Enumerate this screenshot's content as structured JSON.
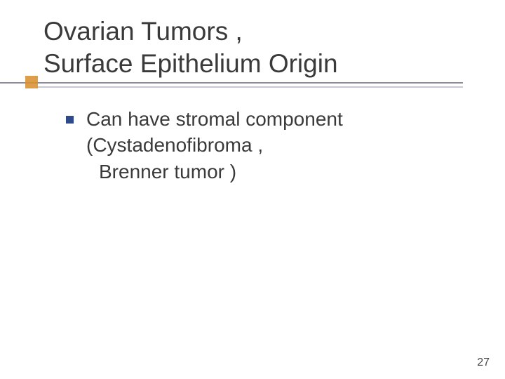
{
  "slide": {
    "title_line1": "Ovarian Tumors ,",
    "title_line2": "Surface Epithelium Origin",
    "title_color": "#3a3a3a",
    "title_fontsize": 37,
    "underline_color": "#8a8a9a",
    "shadow_line_color": "#c8c8d0",
    "accent_square_color": "#d98f2f",
    "bullet_color": "#2f4a8a",
    "body_fontsize": 28,
    "body_color": "#3a3a3a",
    "bullets": [
      {
        "line1": "Can have stromal component",
        "line2": "(Cystadenofibroma ,",
        "line3": "Brenner tumor )"
      }
    ],
    "page_number": "27",
    "background_color": "#ffffff"
  }
}
